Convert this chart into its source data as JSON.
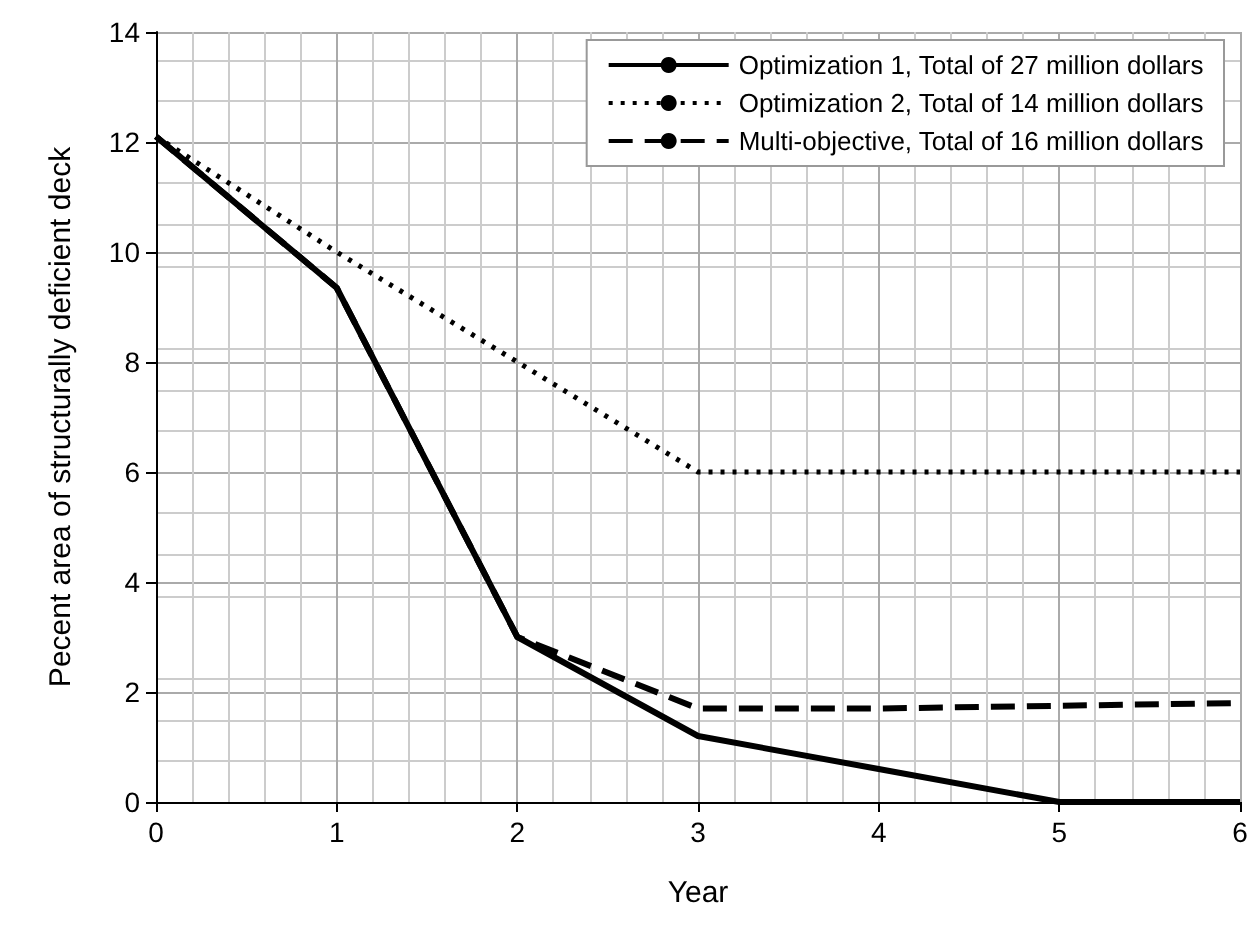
{
  "chart_data": {
    "type": "line",
    "xlabel": "Year",
    "ylabel": "Pecent area of structurally deficient deck",
    "x": [
      0,
      1,
      2,
      3,
      4,
      5,
      6
    ],
    "series": [
      {
        "name": "Optimization 1, Total of 27 million dollars",
        "color": "#000000",
        "line_style": "solid",
        "values": [
          12.1,
          9.35,
          3,
          1.2,
          0.6,
          0,
          0
        ]
      },
      {
        "name": "Optimization 2, Total of 14 million dollars",
        "color": "#000000",
        "line_style": "dotted",
        "values": [
          12.1,
          10,
          8,
          6,
          6,
          6,
          6
        ]
      },
      {
        "name": "Multi-objective, Total of 16 million dollars",
        "color": "#000000",
        "line_style": "dashed",
        "values": [
          12.1,
          9.35,
          3,
          1.7,
          1.7,
          1.75,
          1.8
        ]
      }
    ],
    "xlim": [
      0,
      6
    ],
    "xticks": [
      0,
      1,
      2,
      3,
      4,
      5,
      6
    ],
    "ylim": [
      0,
      14
    ],
    "yticks": [
      0,
      2,
      4,
      6,
      8,
      10,
      12,
      14
    ],
    "grid": true,
    "legend": "top right",
    "marker": "none"
  }
}
